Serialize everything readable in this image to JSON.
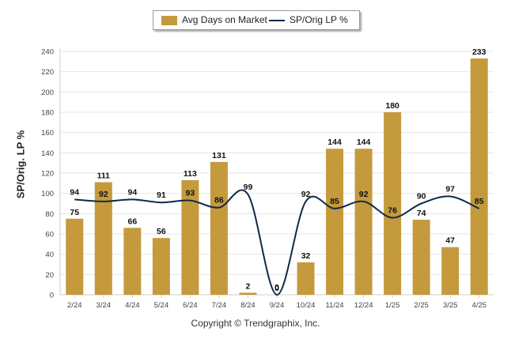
{
  "chart_data": {
    "type": "bar",
    "categories": [
      "2/24",
      "3/24",
      "4/24",
      "5/24",
      "6/24",
      "7/24",
      "8/24",
      "9/24",
      "10/24",
      "11/24",
      "12/24",
      "1/25",
      "2/25",
      "3/25",
      "4/25"
    ],
    "series": [
      {
        "name": "Avg Days on Market",
        "type": "bar",
        "values": [
          75,
          111,
          66,
          56,
          113,
          131,
          2,
          0,
          32,
          144,
          144,
          180,
          74,
          47,
          233
        ]
      },
      {
        "name": "SP/Orig LP %",
        "type": "line",
        "values": [
          94,
          92,
          94,
          91,
          93,
          86,
          99,
          0,
          92,
          85,
          92,
          76,
          90,
          97,
          85
        ]
      }
    ],
    "ylabel": "SP/Orig. LP %",
    "ylim": [
      0,
      240
    ],
    "yticks": [
      0,
      20,
      40,
      60,
      80,
      100,
      120,
      140,
      160,
      180,
      200,
      220,
      240
    ],
    "grid": true,
    "legend_position": "top-center"
  },
  "colors": {
    "bar": "#C49A3C",
    "line": "#0E2A47"
  },
  "footer": "Copyright © Trendgraphix, Inc."
}
